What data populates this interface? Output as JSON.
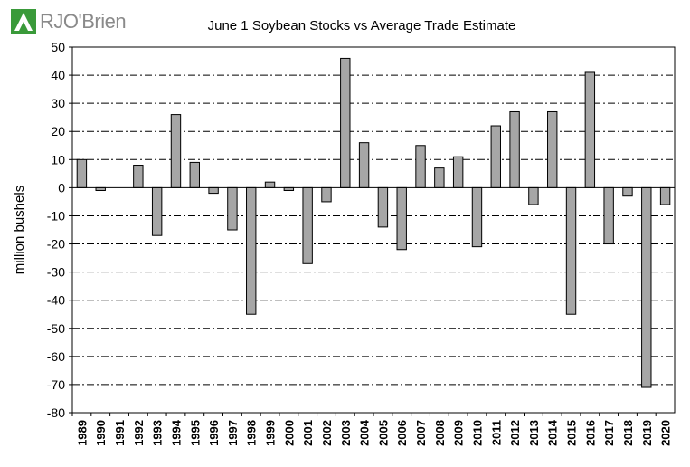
{
  "brand": {
    "name": "RJO'Brien",
    "logo_color": "#3a9a3a"
  },
  "chart_data": {
    "type": "bar",
    "title": "June 1 Soybean Stocks vs Average Trade Estimate",
    "ylabel": "million bushels",
    "xlabel": "",
    "ylim": [
      -80,
      50
    ],
    "ytick_step": 10,
    "grid": true,
    "bar_color": "#a6a6a6",
    "categories": [
      "1989",
      "1990",
      "1991",
      "1992",
      "1993",
      "1994",
      "1995",
      "1996",
      "1997",
      "1998",
      "1999",
      "2000",
      "2001",
      "2002",
      "2003",
      "2004",
      "2005",
      "2006",
      "2007",
      "2008",
      "2009",
      "2010",
      "2011",
      "2012",
      "2013",
      "2014",
      "2015",
      "2016",
      "2017",
      "2018",
      "2019",
      "2020"
    ],
    "values": [
      10,
      -1,
      0,
      8,
      -17,
      26,
      9,
      -2,
      -15,
      -45,
      2,
      -1,
      -27,
      -5,
      46,
      16,
      -14,
      -22,
      15,
      7,
      11,
      -21,
      22,
      27,
      -6,
      27,
      -45,
      41,
      -20,
      -3,
      -71,
      -6
    ]
  }
}
